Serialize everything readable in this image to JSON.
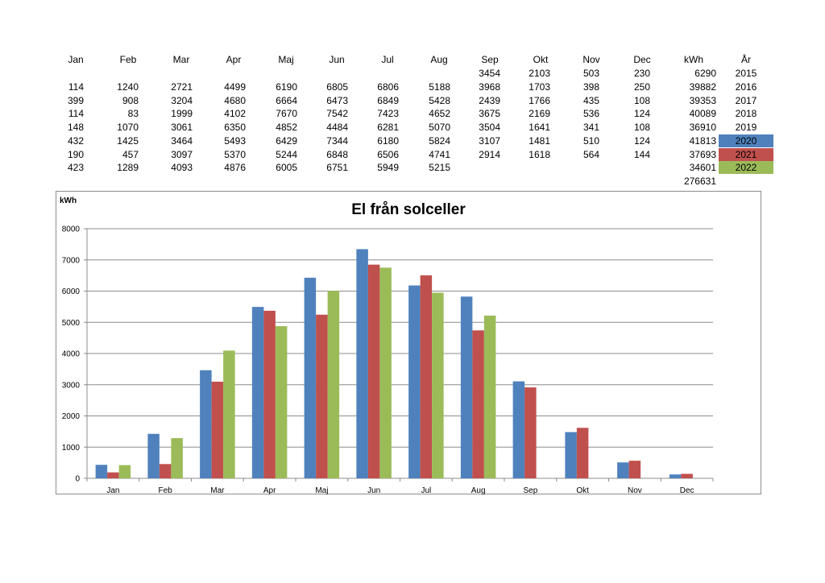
{
  "table": {
    "headers": [
      "Jan",
      "Feb",
      "Mar",
      "Apr",
      "Maj",
      "Jun",
      "Jul",
      "Aug",
      "Sep",
      "Okt",
      "Nov",
      "Dec",
      "kWh",
      "År"
    ],
    "rows": [
      {
        "values": [
          "",
          "",
          "",
          "",
          "",
          "",
          "",
          "",
          "3454",
          "2103",
          "503",
          "230"
        ],
        "total": "6290",
        "year": "2015"
      },
      {
        "values": [
          "114",
          "1240",
          "2721",
          "4499",
          "6190",
          "6805",
          "6806",
          "5188",
          "3968",
          "1703",
          "398",
          "250"
        ],
        "total": "39882",
        "year": "2016"
      },
      {
        "values": [
          "399",
          "908",
          "3204",
          "4680",
          "6664",
          "6473",
          "6849",
          "5428",
          "2439",
          "1766",
          "435",
          "108"
        ],
        "total": "39353",
        "year": "2017"
      },
      {
        "values": [
          "114",
          "83",
          "1999",
          "4102",
          "7670",
          "7542",
          "7423",
          "4652",
          "3675",
          "2169",
          "536",
          "124"
        ],
        "total": "40089",
        "year": "2018"
      },
      {
        "values": [
          "148",
          "1070",
          "3061",
          "6350",
          "4852",
          "4484",
          "6281",
          "5070",
          "3504",
          "1641",
          "341",
          "108"
        ],
        "total": "36910",
        "year": "2019"
      },
      {
        "values": [
          "432",
          "1425",
          "3464",
          "5493",
          "6429",
          "7344",
          "6180",
          "5824",
          "3107",
          "1481",
          "510",
          "124"
        ],
        "total": "41813",
        "year": "2020"
      },
      {
        "values": [
          "190",
          "457",
          "3097",
          "5370",
          "5244",
          "6848",
          "6506",
          "4741",
          "2914",
          "1618",
          "564",
          "144"
        ],
        "total": "37693",
        "year": "2021"
      },
      {
        "values": [
          "423",
          "1289",
          "4093",
          "4876",
          "6005",
          "6751",
          "5949",
          "5215",
          "",
          "",
          "",
          ""
        ],
        "total": "34601",
        "year": "2022"
      }
    ],
    "grand_total": "276631"
  },
  "colors": {
    "2020": "#4f81bd",
    "2021": "#c0504d",
    "2022": "#9bbb59"
  },
  "chart_data": {
    "type": "bar",
    "title": "El från solceller",
    "ylabel": "kWh",
    "xlabel": "",
    "categories": [
      "Jan",
      "Feb",
      "Mar",
      "Apr",
      "Maj",
      "Jun",
      "Jul",
      "Aug",
      "Sep",
      "Okt",
      "Nov",
      "Dec"
    ],
    "series": [
      {
        "name": "2020",
        "color": "#4f81bd",
        "values": [
          432,
          1425,
          3464,
          5493,
          6429,
          7344,
          6180,
          5824,
          3107,
          1481,
          510,
          124
        ]
      },
      {
        "name": "2021",
        "color": "#c0504d",
        "values": [
          190,
          457,
          3097,
          5370,
          5244,
          6848,
          6506,
          4741,
          2914,
          1618,
          564,
          144
        ]
      },
      {
        "name": "2022",
        "color": "#9bbb59",
        "values": [
          423,
          1289,
          4093,
          4876,
          6005,
          6751,
          5949,
          5215,
          null,
          null,
          null,
          null
        ]
      }
    ],
    "ylim": [
      0,
      8000
    ],
    "yticks": [
      0,
      1000,
      2000,
      3000,
      4000,
      5000,
      6000,
      7000,
      8000
    ],
    "grid": true
  }
}
